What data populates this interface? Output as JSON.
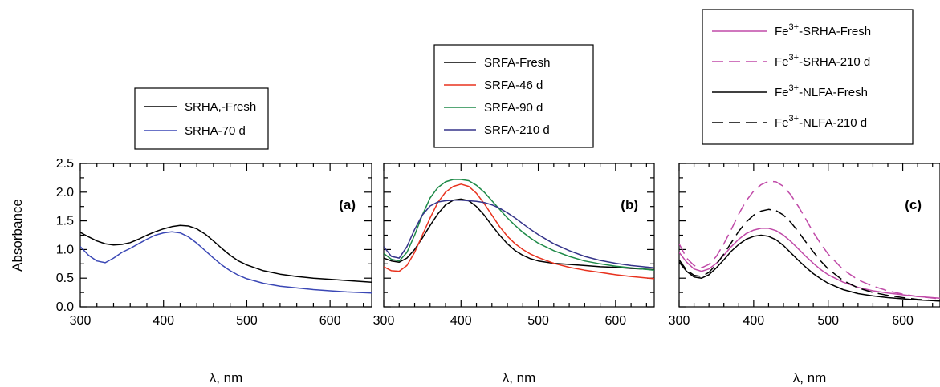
{
  "chart_data": [
    {
      "type": "line",
      "panel_label": "(a)",
      "xlabel": "λ, nm",
      "ylabel": "Absorbance",
      "xlim": [
        300,
        650
      ],
      "ylim": [
        0,
        2.5
      ],
      "xticks": [
        "300",
        "400",
        "500",
        "600"
      ],
      "yticks": [
        "0.0",
        "0.5",
        "1.0",
        "1.5",
        "2.0",
        "2.5"
      ],
      "legend": "above",
      "series": [
        {
          "name": "SRHA,-Fresh",
          "color": "#000000",
          "dash": "solid",
          "x": [
            300,
            310,
            320,
            330,
            340,
            350,
            360,
            370,
            380,
            390,
            400,
            410,
            420,
            430,
            440,
            450,
            460,
            470,
            480,
            490,
            500,
            520,
            540,
            560,
            580,
            600,
            620,
            650
          ],
          "y": [
            1.3,
            1.22,
            1.15,
            1.1,
            1.08,
            1.09,
            1.12,
            1.18,
            1.25,
            1.31,
            1.36,
            1.4,
            1.42,
            1.41,
            1.36,
            1.27,
            1.15,
            1.02,
            0.9,
            0.8,
            0.73,
            0.63,
            0.57,
            0.53,
            0.5,
            0.48,
            0.46,
            0.43
          ]
        },
        {
          "name": "SRHA-70 d",
          "color": "#3a47b5",
          "dash": "solid",
          "x": [
            300,
            310,
            320,
            330,
            340,
            350,
            360,
            370,
            380,
            390,
            400,
            410,
            420,
            430,
            440,
            450,
            460,
            470,
            480,
            490,
            500,
            520,
            540,
            560,
            580,
            600,
            620,
            650
          ],
          "y": [
            1.05,
            0.9,
            0.8,
            0.77,
            0.85,
            0.95,
            1.02,
            1.1,
            1.18,
            1.25,
            1.29,
            1.31,
            1.29,
            1.22,
            1.11,
            0.98,
            0.85,
            0.73,
            0.63,
            0.55,
            0.49,
            0.41,
            0.36,
            0.33,
            0.3,
            0.28,
            0.26,
            0.24
          ]
        }
      ]
    },
    {
      "type": "line",
      "panel_label": "(b)",
      "xlabel": "λ, nm",
      "ylabel": "",
      "xlim": [
        300,
        650
      ],
      "ylim": [
        0,
        2.5
      ],
      "xticks": [
        "300",
        "400",
        "500",
        "600"
      ],
      "yticks": [],
      "legend": "above",
      "series": [
        {
          "name": "SRFA-Fresh",
          "color": "#000000",
          "dash": "solid",
          "x": [
            300,
            310,
            320,
            330,
            340,
            350,
            360,
            370,
            380,
            390,
            400,
            410,
            420,
            430,
            440,
            450,
            460,
            470,
            480,
            490,
            500,
            520,
            540,
            560,
            580,
            600,
            620,
            650
          ],
          "y": [
            0.85,
            0.8,
            0.78,
            0.85,
            1.0,
            1.2,
            1.42,
            1.62,
            1.78,
            1.86,
            1.88,
            1.85,
            1.75,
            1.6,
            1.42,
            1.25,
            1.1,
            0.98,
            0.9,
            0.84,
            0.8,
            0.76,
            0.74,
            0.72,
            0.7,
            0.69,
            0.67,
            0.65
          ]
        },
        {
          "name": "SRFA-46 d",
          "color": "#e8321e",
          "dash": "solid",
          "x": [
            300,
            310,
            320,
            330,
            340,
            350,
            360,
            370,
            380,
            390,
            400,
            410,
            420,
            430,
            440,
            450,
            460,
            470,
            480,
            490,
            500,
            520,
            540,
            560,
            580,
            600,
            620,
            650
          ],
          "y": [
            0.7,
            0.63,
            0.62,
            0.72,
            0.95,
            1.25,
            1.55,
            1.82,
            2.0,
            2.1,
            2.14,
            2.1,
            1.98,
            1.8,
            1.6,
            1.4,
            1.23,
            1.1,
            1.0,
            0.92,
            0.86,
            0.76,
            0.69,
            0.64,
            0.6,
            0.56,
            0.53,
            0.49
          ]
        },
        {
          "name": "SRFA-90 d",
          "color": "#1e8a48",
          "dash": "solid",
          "x": [
            300,
            310,
            320,
            330,
            340,
            350,
            360,
            370,
            380,
            390,
            400,
            410,
            420,
            430,
            440,
            450,
            460,
            470,
            480,
            490,
            500,
            520,
            540,
            560,
            580,
            600,
            620,
            650
          ],
          "y": [
            0.93,
            0.83,
            0.8,
            0.95,
            1.25,
            1.6,
            1.9,
            2.08,
            2.18,
            2.22,
            2.22,
            2.2,
            2.12,
            2.0,
            1.85,
            1.7,
            1.55,
            1.42,
            1.3,
            1.2,
            1.11,
            0.98,
            0.88,
            0.8,
            0.75,
            0.71,
            0.68,
            0.64
          ]
        },
        {
          "name": "SRFA-210 d",
          "color": "#35348a",
          "dash": "solid",
          "x": [
            300,
            310,
            320,
            330,
            340,
            350,
            360,
            370,
            380,
            390,
            400,
            410,
            420,
            430,
            440,
            450,
            460,
            470,
            480,
            490,
            500,
            520,
            540,
            560,
            580,
            600,
            620,
            650
          ],
          "y": [
            1.05,
            0.88,
            0.85,
            1.05,
            1.35,
            1.6,
            1.76,
            1.83,
            1.85,
            1.86,
            1.86,
            1.85,
            1.84,
            1.82,
            1.78,
            1.72,
            1.64,
            1.55,
            1.45,
            1.35,
            1.26,
            1.1,
            0.98,
            0.88,
            0.81,
            0.76,
            0.72,
            0.68
          ]
        }
      ]
    },
    {
      "type": "line",
      "panel_label": "(c)",
      "xlabel": "λ, nm",
      "ylabel": "",
      "xlim": [
        300,
        650
      ],
      "ylim": [
        0,
        2.5
      ],
      "xticks": [
        "300",
        "400",
        "500",
        "600"
      ],
      "yticks": [],
      "legend": "above",
      "series": [
        {
          "name_base": "Fe",
          "name_sup": "3+",
          "name_rest": "-SRHA-Fresh",
          "color": "#c04aa8",
          "dash": "solid",
          "x": [
            300,
            310,
            320,
            330,
            340,
            350,
            360,
            370,
            380,
            390,
            400,
            410,
            420,
            430,
            440,
            450,
            460,
            470,
            480,
            490,
            500,
            520,
            540,
            560,
            580,
            600,
            620,
            650
          ],
          "y": [
            0.95,
            0.78,
            0.66,
            0.62,
            0.66,
            0.76,
            0.9,
            1.05,
            1.18,
            1.28,
            1.34,
            1.37,
            1.37,
            1.33,
            1.25,
            1.14,
            1.01,
            0.88,
            0.76,
            0.65,
            0.56,
            0.43,
            0.34,
            0.28,
            0.24,
            0.21,
            0.18,
            0.15
          ]
        },
        {
          "name_base": "Fe",
          "name_sup": "3+",
          "name_rest": "-SRHA-210 d",
          "color": "#c04aa8",
          "dash": "dashed",
          "x": [
            300,
            310,
            320,
            330,
            340,
            350,
            360,
            370,
            380,
            390,
            400,
            410,
            420,
            430,
            440,
            450,
            460,
            470,
            480,
            490,
            500,
            520,
            540,
            560,
            580,
            600,
            620,
            650
          ],
          "y": [
            1.1,
            0.85,
            0.72,
            0.68,
            0.74,
            0.88,
            1.1,
            1.35,
            1.62,
            1.85,
            2.02,
            2.13,
            2.19,
            2.18,
            2.1,
            1.95,
            1.75,
            1.53,
            1.3,
            1.1,
            0.92,
            0.65,
            0.47,
            0.36,
            0.28,
            0.22,
            0.18,
            0.14
          ]
        },
        {
          "name_base": "Fe",
          "name_sup": "3+",
          "name_rest": "-NLFA-Fresh",
          "color": "#000000",
          "dash": "solid",
          "x": [
            300,
            310,
            320,
            330,
            340,
            350,
            360,
            370,
            380,
            390,
            400,
            410,
            420,
            430,
            440,
            450,
            460,
            470,
            480,
            490,
            500,
            520,
            540,
            560,
            580,
            600,
            620,
            650
          ],
          "y": [
            0.78,
            0.62,
            0.52,
            0.5,
            0.56,
            0.68,
            0.82,
            0.97,
            1.09,
            1.18,
            1.23,
            1.25,
            1.23,
            1.17,
            1.07,
            0.94,
            0.81,
            0.69,
            0.58,
            0.49,
            0.41,
            0.3,
            0.23,
            0.19,
            0.16,
            0.14,
            0.12,
            0.1
          ]
        },
        {
          "name_base": "Fe",
          "name_sup": "3+",
          "name_rest": "-NLFA-210 d",
          "color": "#000000",
          "dash": "dashed",
          "x": [
            300,
            310,
            320,
            330,
            340,
            350,
            360,
            370,
            380,
            390,
            400,
            410,
            420,
            430,
            440,
            450,
            460,
            470,
            480,
            490,
            500,
            520,
            540,
            560,
            580,
            600,
            620,
            650
          ],
          "y": [
            0.82,
            0.64,
            0.55,
            0.53,
            0.6,
            0.74,
            0.92,
            1.12,
            1.32,
            1.48,
            1.6,
            1.67,
            1.7,
            1.68,
            1.6,
            1.47,
            1.31,
            1.13,
            0.96,
            0.8,
            0.66,
            0.46,
            0.33,
            0.25,
            0.2,
            0.16,
            0.13,
            0.1
          ]
        }
      ]
    }
  ]
}
